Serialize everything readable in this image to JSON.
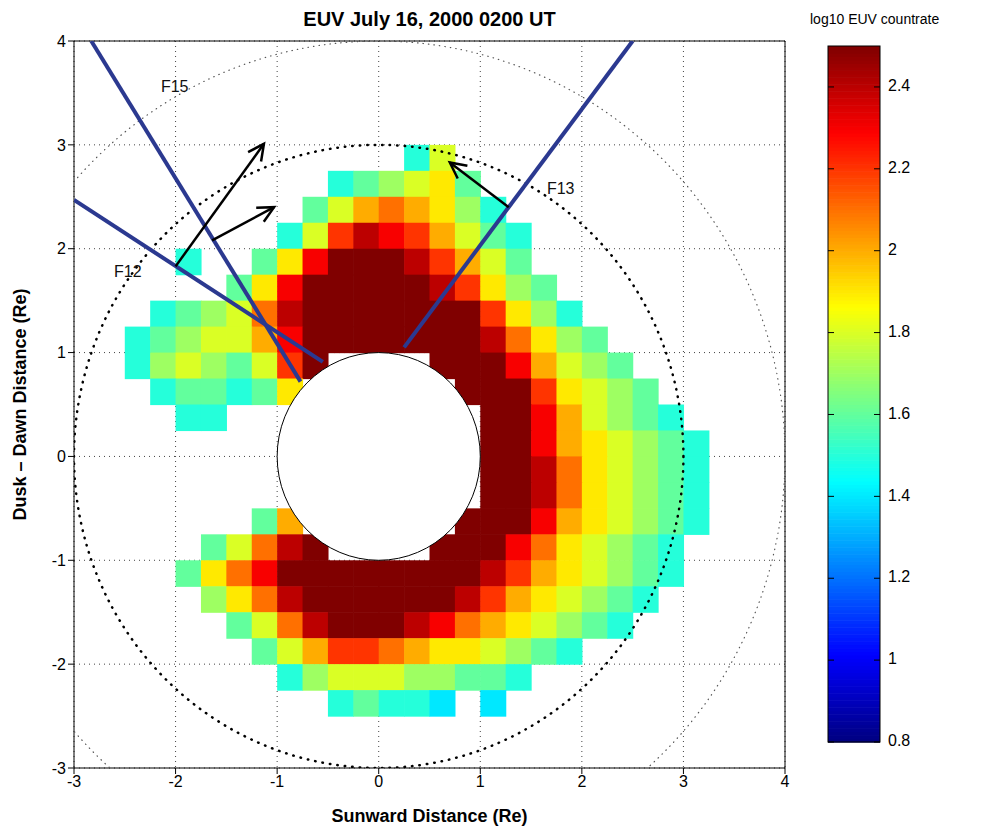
{
  "chart_data": {
    "type": "heatmap",
    "title": "EUV July 16, 2000 0200 UT",
    "x_label": "Sunward Distance (Re)",
    "y_label": "Dusk – Dawn Distance (Re)",
    "xlim": [
      -3,
      4
    ],
    "ylim": [
      -3,
      4
    ],
    "xticks": [
      -3,
      -2,
      -1,
      0,
      1,
      2,
      3,
      4
    ],
    "yticks": [
      -3,
      -2,
      -1,
      0,
      1,
      2,
      3,
      4
    ],
    "grid": true,
    "x": [
      -2.625,
      -2.375,
      -2.125,
      -1.875,
      -1.625,
      -1.375,
      -1.125,
      -0.875,
      -0.625,
      -0.375,
      -0.125,
      0.125,
      0.375,
      0.625,
      0.875,
      1.125,
      1.375,
      1.625,
      1.875,
      2.125,
      2.375,
      2.625,
      2.875,
      3.125
    ],
    "y": [
      2.875,
      2.625,
      2.375,
      2.125,
      1.875,
      1.625,
      1.375,
      1.125,
      0.875,
      0.625,
      0.375,
      0.125,
      -0.125,
      -0.375,
      -0.625,
      -0.875,
      -1.125,
      -1.375,
      -1.625,
      -1.875,
      -2.125,
      -2.375
    ],
    "cells": [
      [
        null,
        null,
        null,
        null,
        null,
        null,
        null,
        null,
        null,
        null,
        null,
        null,
        1.5,
        1.8,
        null,
        null,
        null,
        null,
        null,
        null,
        null,
        null,
        null,
        null
      ],
      [
        null,
        null,
        null,
        null,
        null,
        null,
        null,
        null,
        null,
        1.5,
        1.6,
        1.7,
        1.8,
        1.9,
        1.6,
        null,
        null,
        null,
        null,
        null,
        null,
        null,
        null,
        null
      ],
      [
        null,
        null,
        null,
        null,
        null,
        null,
        null,
        null,
        1.6,
        1.8,
        2.0,
        2.1,
        2.0,
        1.9,
        1.7,
        1.5,
        null,
        null,
        null,
        null,
        null,
        null,
        null,
        null
      ],
      [
        null,
        null,
        null,
        null,
        null,
        null,
        null,
        1.5,
        1.8,
        2.2,
        2.4,
        2.3,
        2.2,
        2.0,
        1.8,
        1.6,
        1.5,
        null,
        null,
        null,
        null,
        null,
        null,
        null
      ],
      [
        null,
        null,
        null,
        1.5,
        null,
        null,
        1.6,
        1.9,
        2.3,
        2.5,
        2.5,
        2.5,
        2.4,
        2.2,
        2.0,
        1.8,
        1.6,
        null,
        null,
        null,
        null,
        null,
        null,
        null
      ],
      [
        null,
        null,
        null,
        null,
        null,
        1.6,
        1.9,
        2.3,
        2.5,
        2.5,
        2.5,
        2.5,
        2.5,
        2.4,
        2.2,
        1.9,
        1.7,
        1.6,
        null,
        null,
        null,
        null,
        null,
        null
      ],
      [
        null,
        null,
        1.5,
        1.6,
        1.7,
        1.8,
        2.1,
        2.4,
        2.5,
        2.5,
        2.5,
        2.5,
        2.5,
        2.5,
        2.5,
        2.2,
        1.9,
        1.7,
        1.5,
        null,
        null,
        null,
        null,
        null
      ],
      [
        null,
        1.5,
        1.6,
        1.7,
        1.8,
        1.8,
        2.0,
        2.3,
        2.5,
        2.5,
        2.5,
        2.5,
        2.5,
        2.5,
        2.5,
        2.4,
        2.1,
        1.9,
        1.7,
        1.6,
        null,
        null,
        null,
        null
      ],
      [
        null,
        1.5,
        1.7,
        1.8,
        1.7,
        1.6,
        1.8,
        2.2,
        2.5,
        null,
        null,
        null,
        null,
        2.5,
        2.5,
        2.5,
        2.3,
        2.0,
        1.8,
        1.7,
        1.6,
        null,
        null,
        null
      ],
      [
        null,
        null,
        1.5,
        1.6,
        1.6,
        1.5,
        1.6,
        1.9,
        null,
        null,
        null,
        null,
        null,
        null,
        2.5,
        2.5,
        2.5,
        2.2,
        1.9,
        1.8,
        1.7,
        1.6,
        null,
        null
      ],
      [
        null,
        null,
        null,
        1.5,
        1.5,
        null,
        null,
        null,
        null,
        null,
        null,
        null,
        null,
        null,
        null,
        2.5,
        2.5,
        2.3,
        2.0,
        1.8,
        1.7,
        1.6,
        1.5,
        null
      ],
      [
        null,
        null,
        null,
        null,
        null,
        null,
        null,
        null,
        null,
        null,
        null,
        null,
        null,
        null,
        null,
        2.5,
        2.5,
        2.3,
        2.0,
        1.9,
        1.8,
        1.7,
        1.6,
        1.5
      ],
      [
        null,
        null,
        null,
        null,
        null,
        null,
        null,
        null,
        null,
        null,
        null,
        null,
        null,
        null,
        null,
        2.5,
        2.5,
        2.4,
        2.1,
        1.9,
        1.8,
        1.7,
        1.6,
        1.5
      ],
      [
        null,
        null,
        null,
        null,
        null,
        null,
        null,
        null,
        null,
        null,
        null,
        null,
        null,
        null,
        null,
        2.5,
        2.5,
        2.4,
        2.1,
        1.9,
        1.8,
        1.7,
        1.6,
        1.5
      ],
      [
        null,
        null,
        null,
        null,
        null,
        null,
        1.6,
        2.0,
        null,
        null,
        null,
        null,
        null,
        null,
        2.5,
        2.5,
        2.5,
        2.3,
        2.0,
        1.9,
        1.8,
        1.7,
        1.6,
        1.5
      ],
      [
        null,
        null,
        null,
        null,
        1.6,
        1.8,
        2.1,
        2.4,
        2.5,
        null,
        null,
        null,
        null,
        2.5,
        2.5,
        2.5,
        2.3,
        2.1,
        1.9,
        1.8,
        1.7,
        1.6,
        1.5,
        null
      ],
      [
        null,
        null,
        null,
        1.6,
        1.9,
        2.1,
        2.3,
        2.5,
        2.5,
        2.5,
        2.5,
        2.5,
        2.5,
        2.5,
        2.5,
        2.4,
        2.2,
        2.0,
        1.9,
        1.8,
        1.7,
        1.6,
        1.5,
        null
      ],
      [
        null,
        null,
        null,
        null,
        1.7,
        1.9,
        2.1,
        2.4,
        2.5,
        2.5,
        2.5,
        2.5,
        2.5,
        2.5,
        2.4,
        2.2,
        2.0,
        1.9,
        1.8,
        1.7,
        1.6,
        1.5,
        null,
        null
      ],
      [
        null,
        null,
        null,
        null,
        null,
        1.6,
        1.8,
        2.1,
        2.4,
        2.5,
        2.5,
        2.5,
        2.4,
        2.3,
        2.1,
        2.0,
        1.9,
        1.8,
        1.7,
        1.6,
        1.5,
        null,
        null,
        null
      ],
      [
        null,
        null,
        null,
        null,
        null,
        null,
        1.6,
        1.8,
        2.0,
        2.2,
        2.2,
        2.1,
        2.0,
        1.9,
        1.9,
        1.8,
        1.7,
        1.6,
        1.5,
        null,
        null,
        null,
        null,
        null
      ],
      [
        null,
        null,
        null,
        null,
        null,
        null,
        null,
        1.5,
        1.7,
        1.8,
        1.8,
        1.8,
        1.7,
        1.7,
        1.6,
        1.6,
        1.5,
        null,
        null,
        null,
        null,
        null,
        null,
        null
      ],
      [
        null,
        null,
        null,
        null,
        null,
        null,
        null,
        null,
        null,
        1.5,
        1.6,
        1.5,
        1.5,
        1.4,
        null,
        1.4,
        null,
        null,
        null,
        null,
        null,
        null,
        null,
        null
      ]
    ],
    "colorbar": {
      "label": "log10 EUV countrate",
      "range": [
        0.8,
        2.5
      ],
      "ticks": [
        0.8,
        1,
        1.2,
        1.4,
        1.6,
        1.8,
        2,
        2.2,
        2.4
      ]
    },
    "tracks": [
      {
        "name": "F15",
        "color": "#2b3990",
        "x": [
          -2.83,
          -0.77
        ],
        "y": [
          4,
          0.72
        ]
      },
      {
        "name": "F12",
        "color": "#2b3990",
        "x": [
          -3,
          -0.55
        ],
        "y": [
          2.47,
          0.91
        ]
      },
      {
        "name": "F13",
        "color": "#2b3990",
        "x": [
          0.25,
          2.5
        ],
        "y": [
          1.05,
          4
        ]
      }
    ],
    "arrows": [
      {
        "x": [
          -2.0,
          -1.13
        ],
        "y": [
          1.83,
          3.01
        ]
      },
      {
        "x": [
          -1.64,
          -1.03
        ],
        "y": [
          2.08,
          2.4
        ]
      },
      {
        "x": [
          1.28,
          0.7
        ],
        "y": [
          2.4,
          2.83
        ]
      }
    ]
  }
}
